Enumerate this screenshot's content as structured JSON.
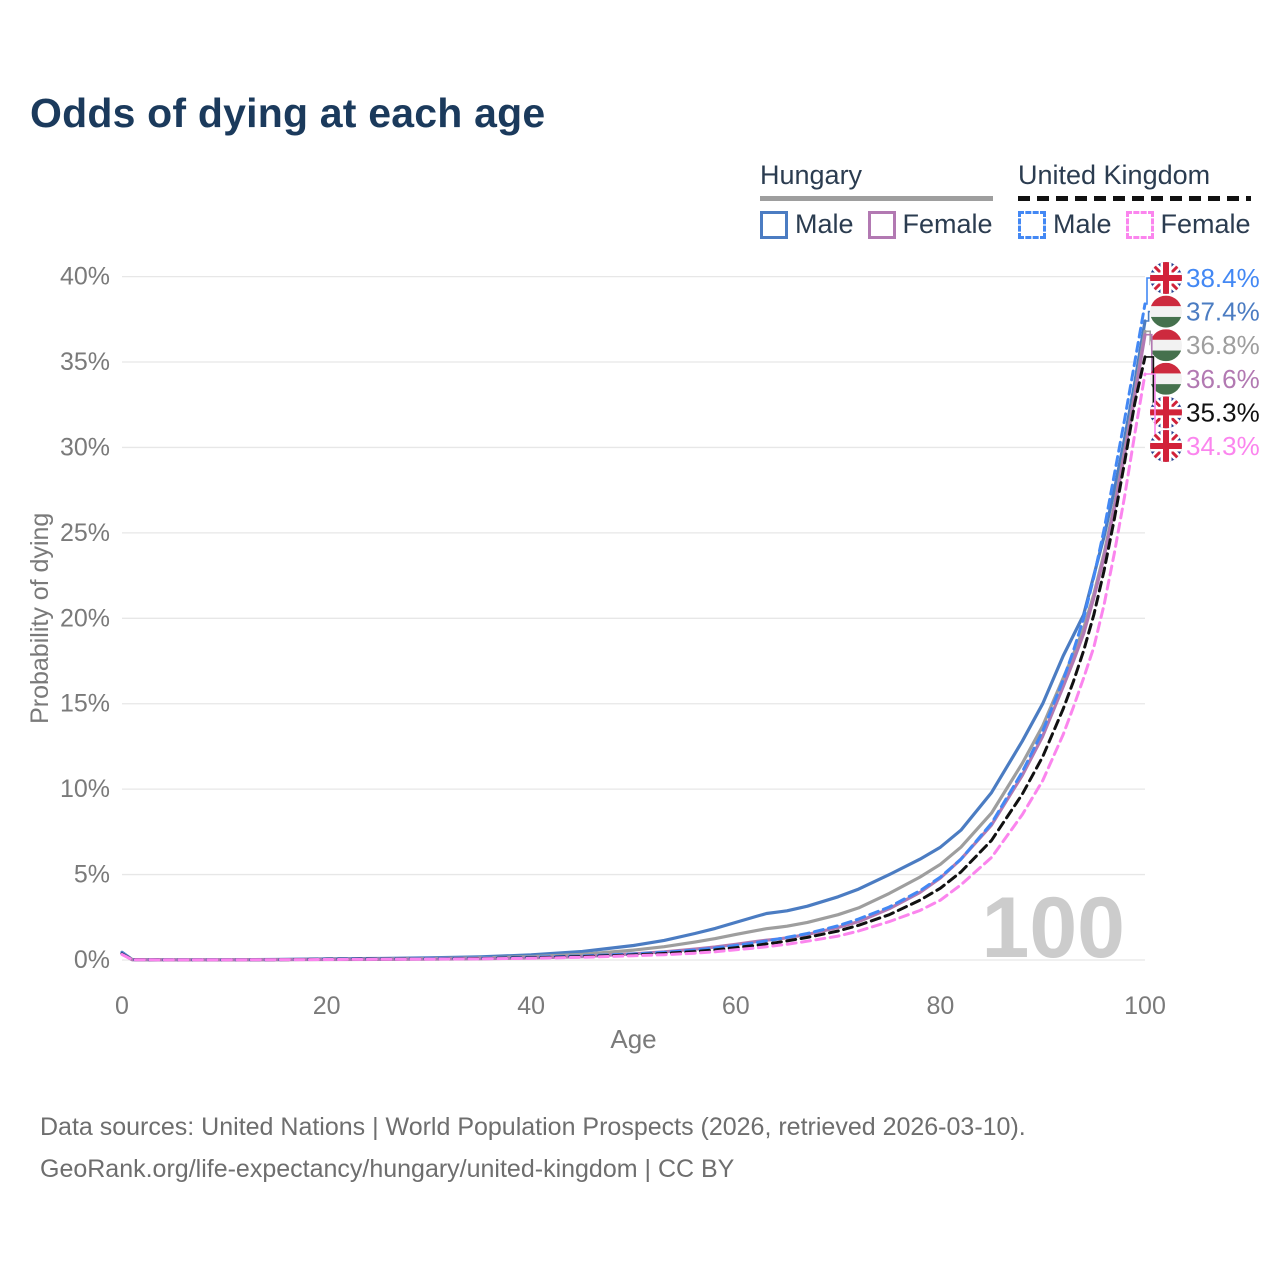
{
  "title": "Odds of dying at each age",
  "legend": {
    "groups": [
      {
        "name": "Hungary",
        "line_style": "solid",
        "underline_color": "#9e9e9e",
        "items": [
          {
            "label": "Male",
            "color": "#4b7cc2",
            "dashed": false
          },
          {
            "label": "Female",
            "color": "#b279b2",
            "dashed": false
          }
        ]
      },
      {
        "name": "United Kingdom",
        "line_style": "dashed",
        "underline_color": "#111111",
        "items": [
          {
            "label": "Male",
            "color": "#4388f4",
            "dashed": true
          },
          {
            "label": "Female",
            "color": "#fb85ee",
            "dashed": true
          }
        ]
      }
    ]
  },
  "chart_data": {
    "type": "line",
    "title": "Odds of dying at each age",
    "xlabel": "Age",
    "ylabel": "Probability of dying",
    "xlim": [
      0,
      100
    ],
    "ylim": [
      0,
      40
    ],
    "grid": "horizontal",
    "x_ticks": [
      0,
      20,
      40,
      60,
      80,
      100
    ],
    "y_ticks": [
      {
        "v": 0,
        "label": "0%"
      },
      {
        "v": 5,
        "label": "5%"
      },
      {
        "v": 10,
        "label": "10%"
      },
      {
        "v": 15,
        "label": "15%"
      },
      {
        "v": 20,
        "label": "20%"
      },
      {
        "v": 25,
        "label": "25%"
      },
      {
        "v": 30,
        "label": "30%"
      },
      {
        "v": 35,
        "label": "35%"
      },
      {
        "v": 40,
        "label": "40%"
      }
    ],
    "watermark": "100",
    "watermark_color": "#cccccc",
    "ages": [
      0,
      1,
      5,
      10,
      15,
      20,
      25,
      30,
      35,
      40,
      45,
      50,
      53,
      56,
      58,
      60,
      62,
      63,
      64,
      65,
      67,
      70,
      72,
      75,
      78,
      80,
      82,
      85,
      88,
      90,
      92,
      93,
      94,
      95,
      96,
      97,
      98,
      99,
      100
    ],
    "series": [
      {
        "name": "Hungary Male",
        "country": "hu",
        "sex": "male",
        "color": "#4b7cc2",
        "dashed": false,
        "values": [
          0.45,
          0.03,
          0.01,
          0.01,
          0.03,
          0.07,
          0.09,
          0.12,
          0.18,
          0.3,
          0.5,
          0.85,
          1.15,
          1.55,
          1.85,
          2.2,
          2.55,
          2.72,
          2.8,
          2.88,
          3.15,
          3.7,
          4.15,
          5.0,
          5.9,
          6.6,
          7.6,
          9.8,
          12.8,
          15.0,
          17.8,
          19.0,
          20.2,
          22.5,
          24.8,
          27.5,
          30.5,
          33.8,
          37.4
        ]
      },
      {
        "name": "Hungary Total",
        "country": "hu",
        "sex": "both",
        "color": "#9e9e9e",
        "dashed": false,
        "values": [
          0.4,
          0.025,
          0.008,
          0.008,
          0.02,
          0.045,
          0.06,
          0.08,
          0.12,
          0.2,
          0.33,
          0.58,
          0.78,
          1.05,
          1.25,
          1.5,
          1.72,
          1.83,
          1.9,
          1.98,
          2.2,
          2.65,
          3.05,
          3.9,
          4.85,
          5.6,
          6.6,
          8.6,
          11.5,
          13.7,
          16.5,
          17.9,
          19.4,
          21.4,
          23.8,
          26.6,
          29.8,
          33.2,
          36.8
        ]
      },
      {
        "name": "Hungary Female",
        "country": "hu",
        "sex": "female",
        "color": "#b279b2",
        "dashed": false,
        "values": [
          0.35,
          0.02,
          0.007,
          0.007,
          0.015,
          0.03,
          0.035,
          0.045,
          0.07,
          0.12,
          0.2,
          0.36,
          0.48,
          0.64,
          0.76,
          0.92,
          1.08,
          1.16,
          1.22,
          1.3,
          1.5,
          1.9,
          2.25,
          3.0,
          3.95,
          4.8,
          5.9,
          7.9,
          10.8,
          13.1,
          16.0,
          17.5,
          19.1,
          21.2,
          23.6,
          26.4,
          29.6,
          33.0,
          36.6
        ]
      },
      {
        "name": "United Kingdom Male",
        "country": "uk",
        "sex": "male",
        "color": "#4388f4",
        "dashed": true,
        "values": [
          0.4,
          0.025,
          0.008,
          0.008,
          0.02,
          0.05,
          0.06,
          0.08,
          0.11,
          0.16,
          0.24,
          0.35,
          0.45,
          0.58,
          0.7,
          0.85,
          1.02,
          1.12,
          1.22,
          1.32,
          1.55,
          2.0,
          2.4,
          3.1,
          4.05,
          4.85,
          5.9,
          8.0,
          11.0,
          13.4,
          16.4,
          18.1,
          20.0,
          22.4,
          25.2,
          28.4,
          31.6,
          35.0,
          38.4
        ]
      },
      {
        "name": "United Kingdom Total",
        "country": "uk",
        "sex": "both",
        "color": "#111111",
        "dashed": true,
        "values": [
          0.35,
          0.022,
          0.007,
          0.007,
          0.018,
          0.04,
          0.05,
          0.06,
          0.09,
          0.13,
          0.2,
          0.3,
          0.38,
          0.49,
          0.59,
          0.72,
          0.86,
          0.94,
          1.02,
          1.12,
          1.32,
          1.7,
          2.03,
          2.65,
          3.5,
          4.2,
          5.15,
          7.0,
          9.7,
          11.9,
          14.7,
          16.3,
          18.1,
          20.2,
          22.8,
          25.8,
          29.1,
          32.6,
          35.3
        ]
      },
      {
        "name": "United Kingdom Female",
        "country": "uk",
        "sex": "female",
        "color": "#fb85ee",
        "dashed": true,
        "values": [
          0.32,
          0.02,
          0.006,
          0.006,
          0.015,
          0.03,
          0.04,
          0.05,
          0.07,
          0.1,
          0.16,
          0.25,
          0.31,
          0.4,
          0.48,
          0.6,
          0.71,
          0.78,
          0.85,
          0.92,
          1.1,
          1.4,
          1.7,
          2.25,
          2.9,
          3.5,
          4.4,
          6.0,
          8.5,
          10.5,
          13.2,
          14.8,
          16.5,
          18.3,
          20.8,
          23.8,
          27.1,
          30.8,
          34.3
        ]
      }
    ],
    "end_labels": [
      {
        "flag": "uk",
        "value": "38.4%",
        "color": "#4388f4"
      },
      {
        "flag": "hu",
        "value": "37.4%",
        "color": "#4b7cc2"
      },
      {
        "flag": "hu",
        "value": "36.8%",
        "color": "#9e9e9e"
      },
      {
        "flag": "hu",
        "value": "36.6%",
        "color": "#b279b2"
      },
      {
        "flag": "uk",
        "value": "35.3%",
        "color": "#111111"
      },
      {
        "flag": "uk",
        "value": "34.3%",
        "color": "#fb85ee"
      }
    ]
  },
  "footer": {
    "line1": "Data sources: United Nations | World Population Prospects (2026, retrieved 2026-03-10).",
    "line2": "GeoRank.org/life-expectancy/hungary/united-kingdom | CC BY"
  }
}
